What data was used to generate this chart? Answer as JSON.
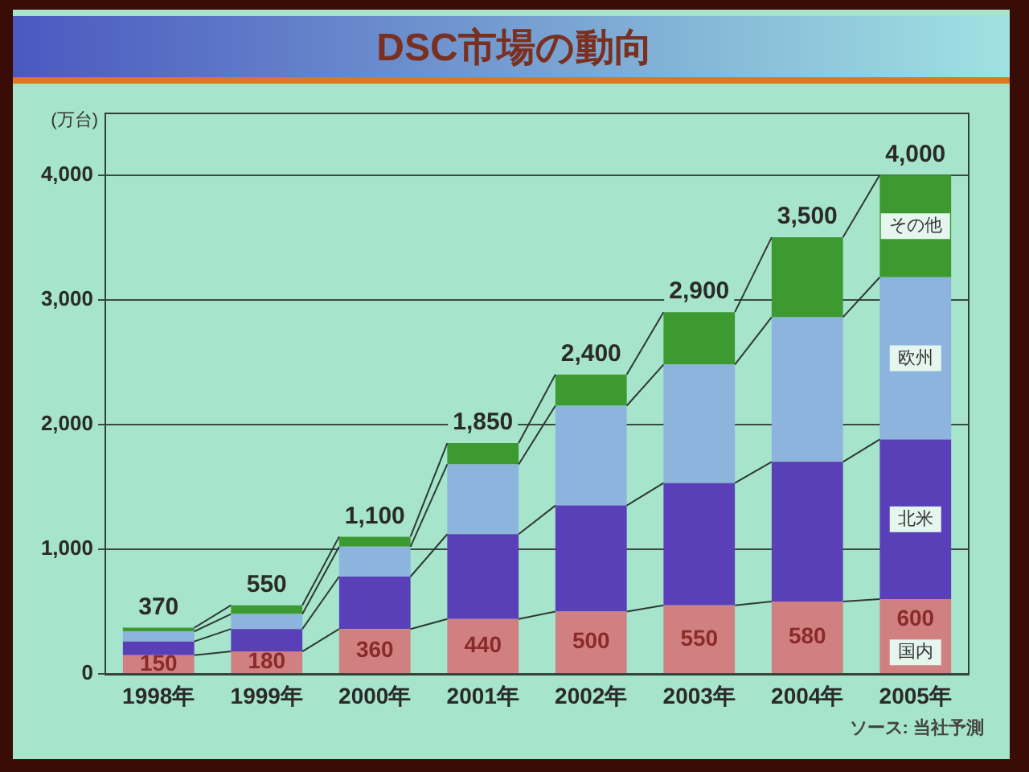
{
  "chart_data": {
    "type": "bar",
    "title": "DSC市場の動向",
    "ylabel": "(万台)",
    "categories": [
      "1998年",
      "1999年",
      "2000年",
      "2001年",
      "2002年",
      "2003年",
      "2004年",
      "2005年"
    ],
    "stacked": true,
    "series": [
      {
        "name": "国内",
        "color": "#d08080",
        "values": [
          150,
          180,
          360,
          440,
          500,
          550,
          580,
          600
        ],
        "value_labels": [
          "150",
          "180",
          "360",
          "440",
          "500",
          "550",
          "580",
          "600"
        ]
      },
      {
        "name": "北米",
        "color": "#5a40b8",
        "values": [
          110,
          180,
          420,
          680,
          850,
          980,
          1120,
          1280
        ]
      },
      {
        "name": "欧州",
        "color": "#8cb4dc",
        "values": [
          80,
          120,
          240,
          560,
          800,
          950,
          1160,
          1300
        ]
      },
      {
        "name": "その他",
        "color": "#3c9a30",
        "values": [
          30,
          70,
          80,
          170,
          250,
          420,
          640,
          820
        ]
      }
    ],
    "totals": [
      "370",
      "550",
      "1,100",
      "1,850",
      "2,400",
      "2,900",
      "3,500",
      "4,000"
    ],
    "ylim": [
      0,
      4500
    ],
    "yticks": [
      0,
      {
        "value": 1000,
        "label": "1,000"
      },
      {
        "value": 2000,
        "label": "2,000"
      },
      {
        "value": 3000,
        "label": "3,000"
      },
      {
        "value": 4000,
        "label": "4,000"
      }
    ],
    "grid": "y",
    "annotations": [
      "ソース: 当社予測"
    ]
  }
}
